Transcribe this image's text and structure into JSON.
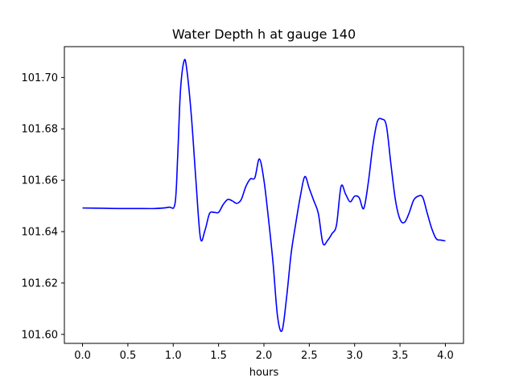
{
  "chart_data": {
    "type": "line",
    "title": "Water Depth h at gauge 140",
    "xlabel": "hours",
    "ylabel": "",
    "xlim": [
      -0.2,
      4.2
    ],
    "ylim": [
      101.5965,
      101.712
    ],
    "grid": false,
    "xticks": [
      "0.0",
      "0.5",
      "1.0",
      "1.5",
      "2.0",
      "2.5",
      "3.0",
      "3.5",
      "4.0"
    ],
    "yticks": [
      "101.60",
      "101.62",
      "101.64",
      "101.66",
      "101.68",
      "101.70"
    ],
    "series": [
      {
        "color": "#0000ff",
        "x": [
          0.0,
          0.2,
          0.4,
          0.6,
          0.8,
          0.95,
          1.02,
          1.05,
          1.08,
          1.12,
          1.15,
          1.2,
          1.25,
          1.3,
          1.35,
          1.4,
          1.45,
          1.5,
          1.55,
          1.6,
          1.65,
          1.7,
          1.75,
          1.8,
          1.85,
          1.9,
          1.95,
          2.0,
          2.05,
          2.1,
          2.15,
          2.2,
          2.25,
          2.3,
          2.35,
          2.4,
          2.45,
          2.5,
          2.55,
          2.6,
          2.65,
          2.7,
          2.75,
          2.8,
          2.85,
          2.9,
          2.95,
          3.0,
          3.05,
          3.1,
          3.15,
          3.2,
          3.25,
          3.3,
          3.35,
          3.4,
          3.45,
          3.5,
          3.55,
          3.6,
          3.65,
          3.7,
          3.75,
          3.8,
          3.85,
          3.9,
          3.95,
          4.0
        ],
        "y": [
          101.6492,
          101.6491,
          101.649,
          101.649,
          101.649,
          101.6495,
          101.651,
          101.67,
          101.695,
          101.7065,
          101.703,
          101.685,
          101.66,
          101.6375,
          101.6405,
          101.647,
          101.6475,
          101.6475,
          101.6505,
          101.6525,
          101.652,
          101.651,
          101.6525,
          101.6575,
          101.6605,
          101.661,
          101.6683,
          101.66,
          101.645,
          101.628,
          101.607,
          101.6015,
          101.6145,
          101.6315,
          101.643,
          101.6535,
          101.6614,
          101.6568,
          101.652,
          101.647,
          101.6355,
          101.6365,
          101.6392,
          101.6426,
          101.6576,
          101.6546,
          101.6516,
          101.6538,
          101.6532,
          101.649,
          101.659,
          101.6733,
          101.6828,
          101.6838,
          101.6812,
          101.6662,
          101.6522,
          101.6448,
          101.6436,
          101.6472,
          101.6522,
          101.6538,
          101.6534,
          101.6472,
          101.6412,
          101.6372,
          101.6367,
          101.6364
        ]
      }
    ]
  }
}
